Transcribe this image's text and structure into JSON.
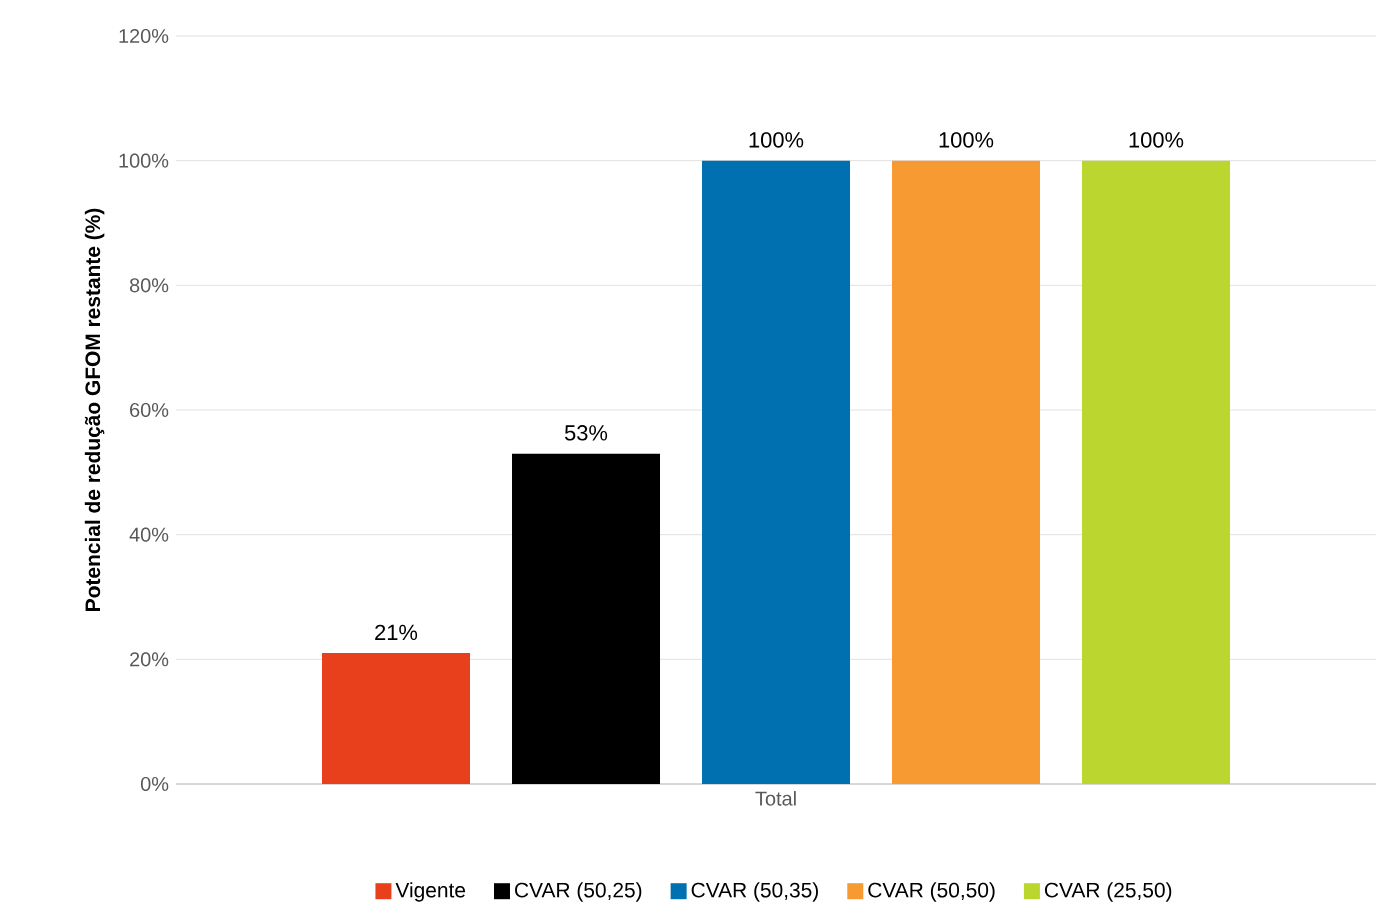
{
  "chart_data": {
    "type": "bar",
    "ylabel": "Potencial de redução GFOM restante (%)",
    "categories": [
      "Total"
    ],
    "series": [
      {
        "name": "Vigente",
        "color": "#e8401c",
        "values": [
          21
        ],
        "value_labels": [
          "21%"
        ]
      },
      {
        "name": "CVAR (50,25)",
        "color": "#000000",
        "values": [
          53
        ],
        "value_labels": [
          "53%"
        ]
      },
      {
        "name": "CVAR (50,35)",
        "color": "#0070b0",
        "values": [
          100
        ],
        "value_labels": [
          "100%"
        ]
      },
      {
        "name": "CVAR (50,50)",
        "color": "#f79a32",
        "values": [
          100
        ],
        "value_labels": [
          "100%"
        ]
      },
      {
        "name": "CVAR (25,50)",
        "color": "#bcd630",
        "values": [
          100
        ],
        "value_labels": [
          "100%"
        ]
      }
    ],
    "ylim": [
      0,
      120
    ],
    "yticks": [
      {
        "value": 0,
        "label": "0%"
      },
      {
        "value": 20,
        "label": "20%"
      },
      {
        "value": 40,
        "label": "40%"
      },
      {
        "value": 60,
        "label": "60%"
      },
      {
        "value": 80,
        "label": "80%"
      },
      {
        "value": 100,
        "label": "100%"
      },
      {
        "value": 120,
        "label": "120%"
      }
    ],
    "grid": "y",
    "legend": "bottom"
  }
}
